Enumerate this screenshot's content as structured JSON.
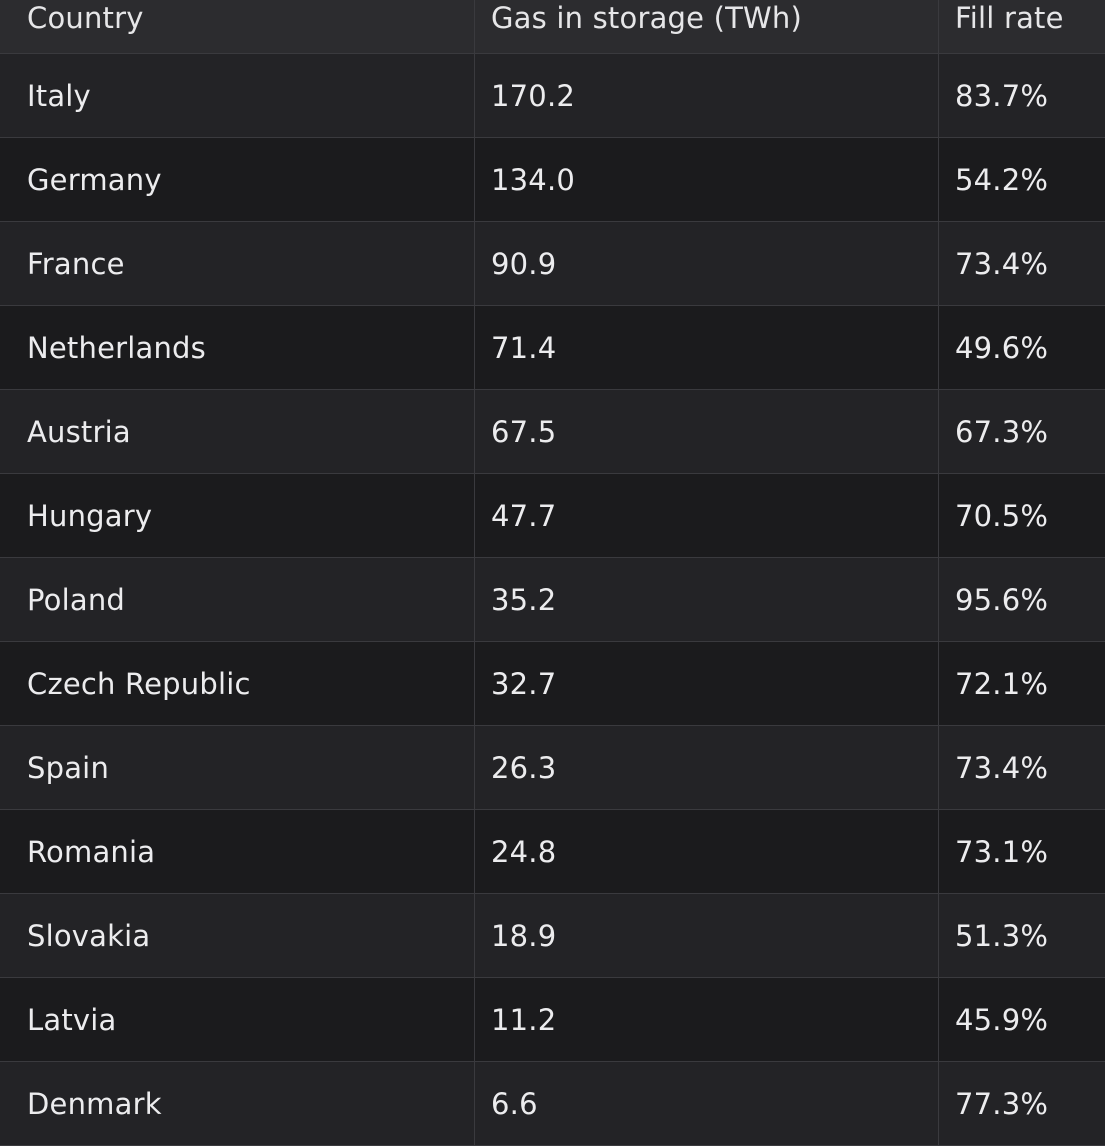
{
  "table": {
    "headers": [
      "Country",
      "Gas in storage (TWh)",
      "Fill rate"
    ],
    "rows": [
      [
        "Italy",
        "170.2",
        "83.7%"
      ],
      [
        "Germany",
        "134.0",
        "54.2%"
      ],
      [
        "France",
        "90.9",
        "73.4%"
      ],
      [
        "Netherlands",
        "71.4",
        "49.6%"
      ],
      [
        "Austria",
        "67.5",
        "67.3%"
      ],
      [
        "Hungary",
        "47.7",
        "70.5%"
      ],
      [
        "Poland",
        "35.2",
        "95.6%"
      ],
      [
        "Czech Republic",
        "32.7",
        "72.1%"
      ],
      [
        "Spain",
        "26.3",
        "73.4%"
      ],
      [
        "Romania",
        "24.8",
        "73.1%"
      ],
      [
        "Slovakia",
        "18.9",
        "51.3%"
      ],
      [
        "Latvia",
        "11.2",
        "45.9%"
      ],
      [
        "Denmark",
        "6.6",
        "77.3%"
      ]
    ]
  }
}
